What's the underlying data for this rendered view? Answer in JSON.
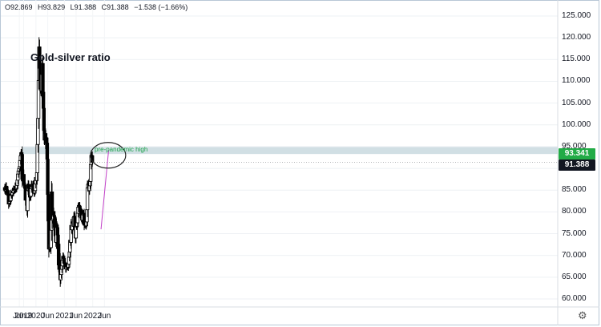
{
  "header": {
    "open": "O92.869",
    "high": "H93.829",
    "low": "L91.388",
    "close": "C91.388",
    "change": "−1.538 (−1.66%)"
  },
  "price_badges": {
    "resistance": "93.341",
    "last": "91.388"
  },
  "icons": {
    "settings": "gear-icon"
  },
  "colors": {
    "up": "#000000",
    "down": "#000000",
    "zone_fill": "#c9d9df",
    "zone_label": "#1aa34a",
    "trendline": "#c13fc7",
    "badge_green": "#22ab46",
    "badge_dark": "#131722"
  },
  "chart_data": {
    "type": "candlestick",
    "title": "Gold-silver ratio",
    "annotations": [
      "pre-pandemic high"
    ],
    "x_ticks": [
      "2019",
      "Jun",
      "2020",
      "Jun",
      "2021",
      "Jun",
      "2022",
      "Jun"
    ],
    "y_ticks": [
      "125.000",
      "120.000",
      "115.000",
      "110.000",
      "105.000",
      "100.000",
      "95.000",
      "90.000",
      "85.000",
      "80.000",
      "75.000",
      "70.000",
      "65.000",
      "60.000"
    ],
    "ylim": [
      58,
      127
    ],
    "zone": [
      93.3,
      94.9
    ],
    "trendline": [
      [
        "2022-04-18",
        76.0
      ],
      [
        "2022-07-25",
        94.2
      ]
    ],
    "ellipse_center": [
      "2022-07-18",
      93.0
    ],
    "last_price": 91.388,
    "closes": [
      85.6,
      84.8,
      85.9,
      85.1,
      84.6,
      84.9,
      83.8,
      81.8,
      82.0,
      82.4,
      82.6,
      84.1,
      83.8,
      83.9,
      84.7,
      84.4,
      85.2,
      84.9,
      85.1,
      85.9,
      85.2,
      85.4,
      86.1,
      87.3,
      88.7,
      89.4,
      89.9,
      90.4,
      91.8,
      92.9,
      93.6,
      93.2,
      87.5,
      87.1,
      88.6,
      86.4,
      86.1,
      85.5,
      82.7,
      84.1,
      82.7,
      80.3,
      84.9,
      86.3,
      85.4,
      84.7,
      83.4,
      83.6,
      85.3,
      86.3,
      85.8,
      85.6,
      86.3,
      85.0,
      84.3,
      84.9,
      86.4,
      87.9,
      87.2,
      89.0,
      95.5,
      101.5,
      110.2,
      117.9,
      113.0,
      108.3,
      110.3,
      107.8,
      111.6,
      114.1,
      107.5,
      103.8,
      98.7,
      96.5,
      98.0,
      95.6,
      97.0,
      95.8,
      92.1,
      84.0,
      77.9,
      71.5,
      71.6,
      72.6,
      71.8,
      75.8,
      84.6,
      78.1,
      78.4,
      80.1,
      79.2,
      78.8,
      76.5,
      74.5,
      73.0,
      77.0,
      76.4,
      74.7,
      72.6,
      67.8,
      66.8,
      68.9,
      64.4,
      65.6,
      66.8,
      67.6,
      68.9,
      69.8,
      69.3,
      68.3,
      68.3,
      67.7,
      66.9,
      67.5,
      67.5,
      67.3,
      67.3,
      68.0,
      69.6,
      70.8,
      73.5,
      73.0,
      76.9,
      75.9,
      77.7,
      77.4,
      76.7,
      78.9,
      79.0,
      76.5,
      74.0,
      76.6,
      76.7,
      77.5,
      79.7,
      81.1,
      81.5,
      81.3,
      80.0,
      80.6,
      80.0,
      78.6,
      78.1,
      79.3,
      79.7,
      79.5,
      77.0,
      77.1,
      77.0,
      76.8,
      77.7,
      80.5,
      85.5,
      86.3,
      86.6,
      84.9,
      86.0,
      87.0,
      90.9,
      93.0,
      92.9,
      91.4
    ]
  }
}
